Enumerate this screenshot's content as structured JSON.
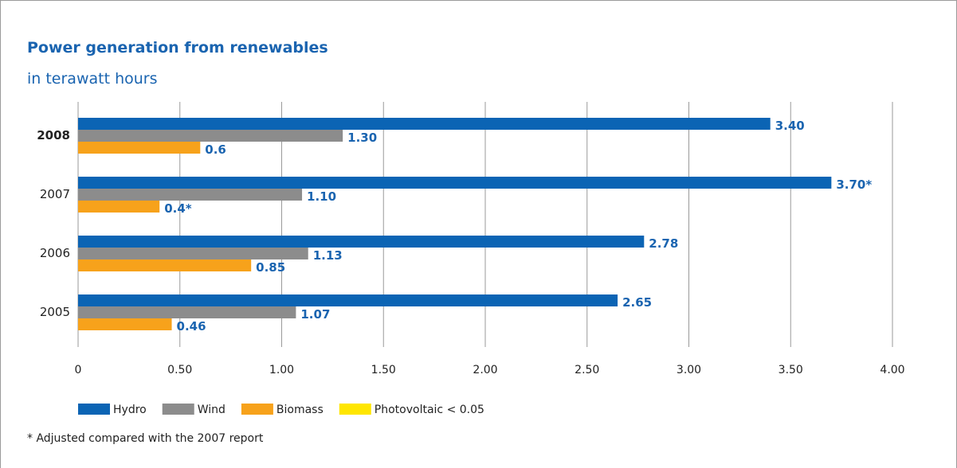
{
  "chart_data": {
    "type": "bar",
    "orientation": "horizontal",
    "title": "Power generation from renewables",
    "subtitle": "in terawatt hours",
    "categories": [
      "2008",
      "2007",
      "2006",
      "2005"
    ],
    "series": [
      {
        "name": "Hydro",
        "color": "#0b64b4",
        "values": [
          3.4,
          3.7,
          2.78,
          2.65
        ],
        "value_labels": [
          "3.40",
          "3.70*",
          "2.78",
          "2.65"
        ]
      },
      {
        "name": "Wind",
        "color": "#8c8c8c",
        "values": [
          1.3,
          1.1,
          1.13,
          1.07
        ],
        "value_labels": [
          "1.30",
          "1.10",
          "1.13",
          "1.07"
        ]
      },
      {
        "name": "Biomass",
        "color": "#f7a21b",
        "values": [
          0.6,
          0.4,
          0.85,
          0.46
        ],
        "value_labels": [
          "0.6",
          "0.4*",
          "0.85",
          "0.46"
        ]
      },
      {
        "name": "Photovoltaic < 0.05",
        "color": "#ffe600",
        "values": [
          null,
          null,
          null,
          null
        ]
      }
    ],
    "xlim": [
      0,
      4.0
    ],
    "xticks": [
      0,
      {
        "value": 0.5,
        "label": "0.50"
      },
      {
        "value": 1.0,
        "label": "1.00"
      },
      {
        "value": 1.5,
        "label": "1.50"
      },
      {
        "value": 2.0,
        "label": "2.00"
      },
      {
        "value": 2.5,
        "label": "2.50"
      },
      {
        "value": 3.0,
        "label": "3.00"
      },
      {
        "value": 3.5,
        "label": "3.50"
      },
      {
        "value": 4.0,
        "label": "4.00"
      }
    ],
    "grid": true,
    "note": "* Adjusted compared with the 2007 report"
  }
}
